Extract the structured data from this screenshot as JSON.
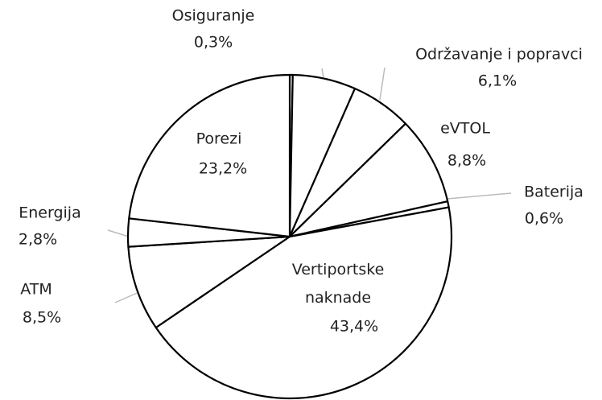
{
  "chart_data": {
    "type": "pie",
    "categories": [
      "Osiguranje",
      null,
      "Održavanje i popravci",
      "eVTOL",
      "Baterija",
      "Vertiportske naknade",
      "ATM",
      "Energija",
      "Porezi"
    ],
    "values": [
      0.3,
      6.3,
      6.1,
      8.8,
      0.6,
      43.4,
      8.5,
      2.8,
      23.2
    ],
    "value_labels": [
      "0,3%",
      null,
      "6,1%",
      "8,8%",
      "0,6%",
      "43,4%",
      "8,5%",
      "2,8%",
      "23,2%"
    ],
    "color": "#ffffff",
    "edge_color": "#000000"
  }
}
